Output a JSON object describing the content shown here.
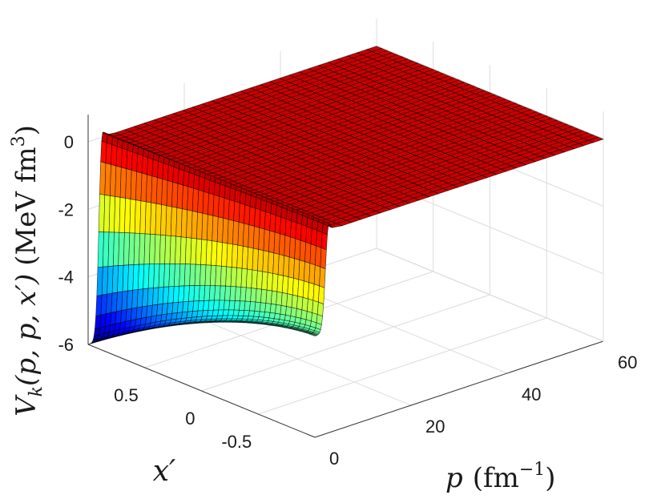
{
  "chart_data": {
    "type": "surface",
    "title": "",
    "xlabel": "p (fm^-1)",
    "ylabel": "x'",
    "zlabel": "V_k(p,p,x') (MeV fm^3)",
    "xlim": [
      0,
      60
    ],
    "ylim": [
      -1,
      1
    ],
    "zlim": [
      -6,
      0.8
    ],
    "x_ticks": [
      "0",
      "20",
      "40",
      "60"
    ],
    "y_ticks": [
      "-0.5",
      "0",
      "0.5"
    ],
    "z_ticks": [
      "-6",
      "-4",
      "-2",
      "0"
    ],
    "colormap": "jet",
    "grid": true,
    "surface": {
      "description": "V(p,x') ~ 0 plateau for p above about 2 fm^-1; deep negative trough near p = 0 reaching about -6 at x' = 1",
      "p_samples": [
        0,
        0.5,
        1,
        1.5,
        2,
        3,
        10,
        30,
        60
      ],
      "xprime_samples": [
        -1,
        -0.5,
        0,
        0.5,
        1
      ],
      "approx_min_value": -6.0,
      "approx_plateau_value": 0.0
    }
  },
  "labels": {
    "z_axis": {
      "main": "V",
      "sub": "k",
      "args": "(p, p, x′)",
      "units": "(MeV fm",
      "sup": "3",
      "close": ")"
    },
    "x_axis": {
      "var": "p",
      "units": "(fm",
      "sup": "−1",
      "close": ")"
    },
    "y_axis": {
      "var": "x′"
    }
  }
}
